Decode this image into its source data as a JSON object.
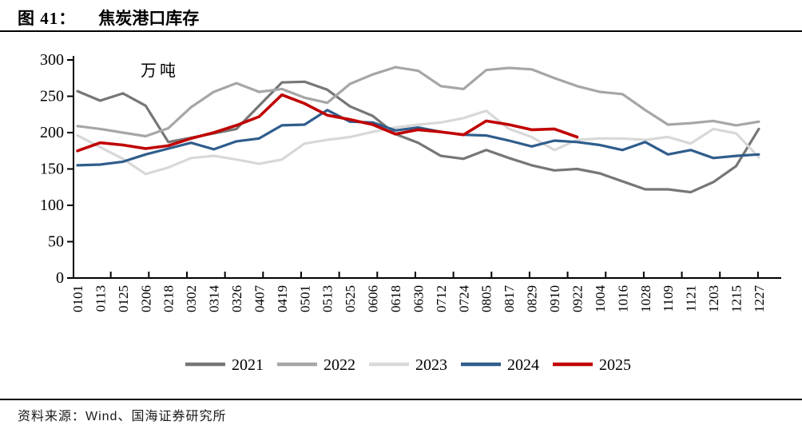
{
  "figure": {
    "label": "图 41：",
    "title": "焦炭港口库存"
  },
  "source": {
    "text": "资料来源：Wind、国海证券研究所"
  },
  "chart_data": {
    "type": "line",
    "title": "焦炭港口库存",
    "unit_label": "万吨",
    "ylabel": "",
    "xlabel": "",
    "ylim": [
      0,
      300
    ],
    "yticks": [
      0,
      50,
      100,
      150,
      200,
      250,
      300
    ],
    "grid": false,
    "legend_position": "bottom",
    "categories": [
      "0101",
      "0113",
      "0125",
      "0206",
      "0218",
      "0302",
      "0314",
      "0326",
      "0407",
      "0419",
      "0501",
      "0513",
      "0525",
      "0606",
      "0618",
      "0630",
      "0712",
      "0724",
      "0805",
      "0817",
      "0829",
      "0910",
      "0922",
      "1004",
      "1016",
      "1028",
      "1109",
      "1121",
      "1203",
      "1215",
      "1227"
    ],
    "series": [
      {
        "name": "2021",
        "color": "#767676",
        "values": [
          257,
          244,
          254,
          237,
          187,
          193,
          199,
          205,
          237,
          269,
          270,
          259,
          236,
          223,
          198,
          186,
          168,
          164,
          176,
          165,
          155,
          148,
          150,
          144,
          133,
          122,
          122,
          118,
          132,
          154,
          205
        ]
      },
      {
        "name": "2022",
        "color": "#a6a6a6",
        "values": [
          209,
          205,
          200,
          195,
          206,
          235,
          256,
          268,
          256,
          260,
          248,
          241,
          267,
          280,
          290,
          285,
          264,
          260,
          286,
          289,
          287,
          275,
          264,
          256,
          253,
          231,
          211,
          213,
          216,
          210,
          215
        ]
      },
      {
        "name": "2023",
        "color": "#d8d8d8",
        "values": [
          196,
          180,
          164,
          143,
          152,
          165,
          168,
          163,
          157,
          163,
          185,
          190,
          194,
          201,
          207,
          211,
          214,
          220,
          230,
          205,
          194,
          176,
          190,
          192,
          192,
          190,
          194,
          185,
          205,
          199,
          166
        ]
      },
      {
        "name": "2024",
        "color": "#2f5d8c",
        "values": [
          155,
          156,
          160,
          170,
          178,
          186,
          177,
          188,
          192,
          210,
          211,
          231,
          215,
          214,
          203,
          207,
          201,
          197,
          196,
          189,
          181,
          189,
          187,
          183,
          176,
          187,
          170,
          176,
          165,
          168,
          170
        ]
      },
      {
        "name": "2025",
        "color": "#c00000",
        "values": [
          175,
          186,
          183,
          178,
          182,
          192,
          200,
          210,
          222,
          252,
          240,
          224,
          218,
          211,
          198,
          204,
          201,
          197,
          216,
          211,
          204,
          205,
          194
        ]
      }
    ]
  }
}
